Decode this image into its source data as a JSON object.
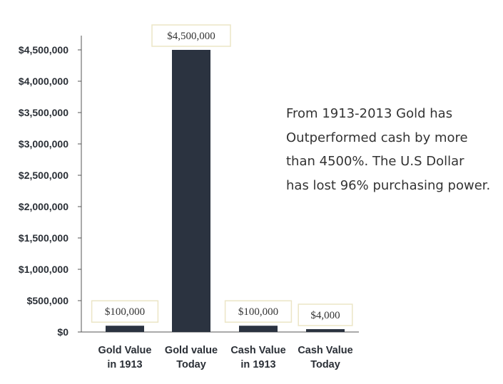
{
  "chart_data": {
    "type": "bar",
    "categories": [
      [
        "Gold Value",
        "in 1913"
      ],
      [
        "Gold value",
        "Today"
      ],
      [
        "Cash Value",
        "in 1913"
      ],
      [
        "Cash Value",
        "Today"
      ]
    ],
    "values": [
      100000,
      4500000,
      100000,
      4000
    ],
    "value_labels": [
      "$100,000",
      "$4,500,000",
      "$100,000",
      "$4,000"
    ],
    "y_ticks": [
      "$0",
      "$500,000",
      "$1,000,000",
      "$1,500,000",
      "$2,000,000",
      "$2,500,000",
      "$3,000,000",
      "$3,500,000",
      "$4,000,000",
      "$4,500,000"
    ],
    "ylim": [
      0,
      4500000
    ],
    "grid": false,
    "bar_color": "#2b3340",
    "label_box_border": "#ece5c6"
  },
  "annotation": {
    "lines": [
      "From 1913-2013 Gold has",
      "Outperformed cash by more",
      "than 4500%. The U.S Dollar",
      "has lost 96% purchasing power."
    ]
  }
}
